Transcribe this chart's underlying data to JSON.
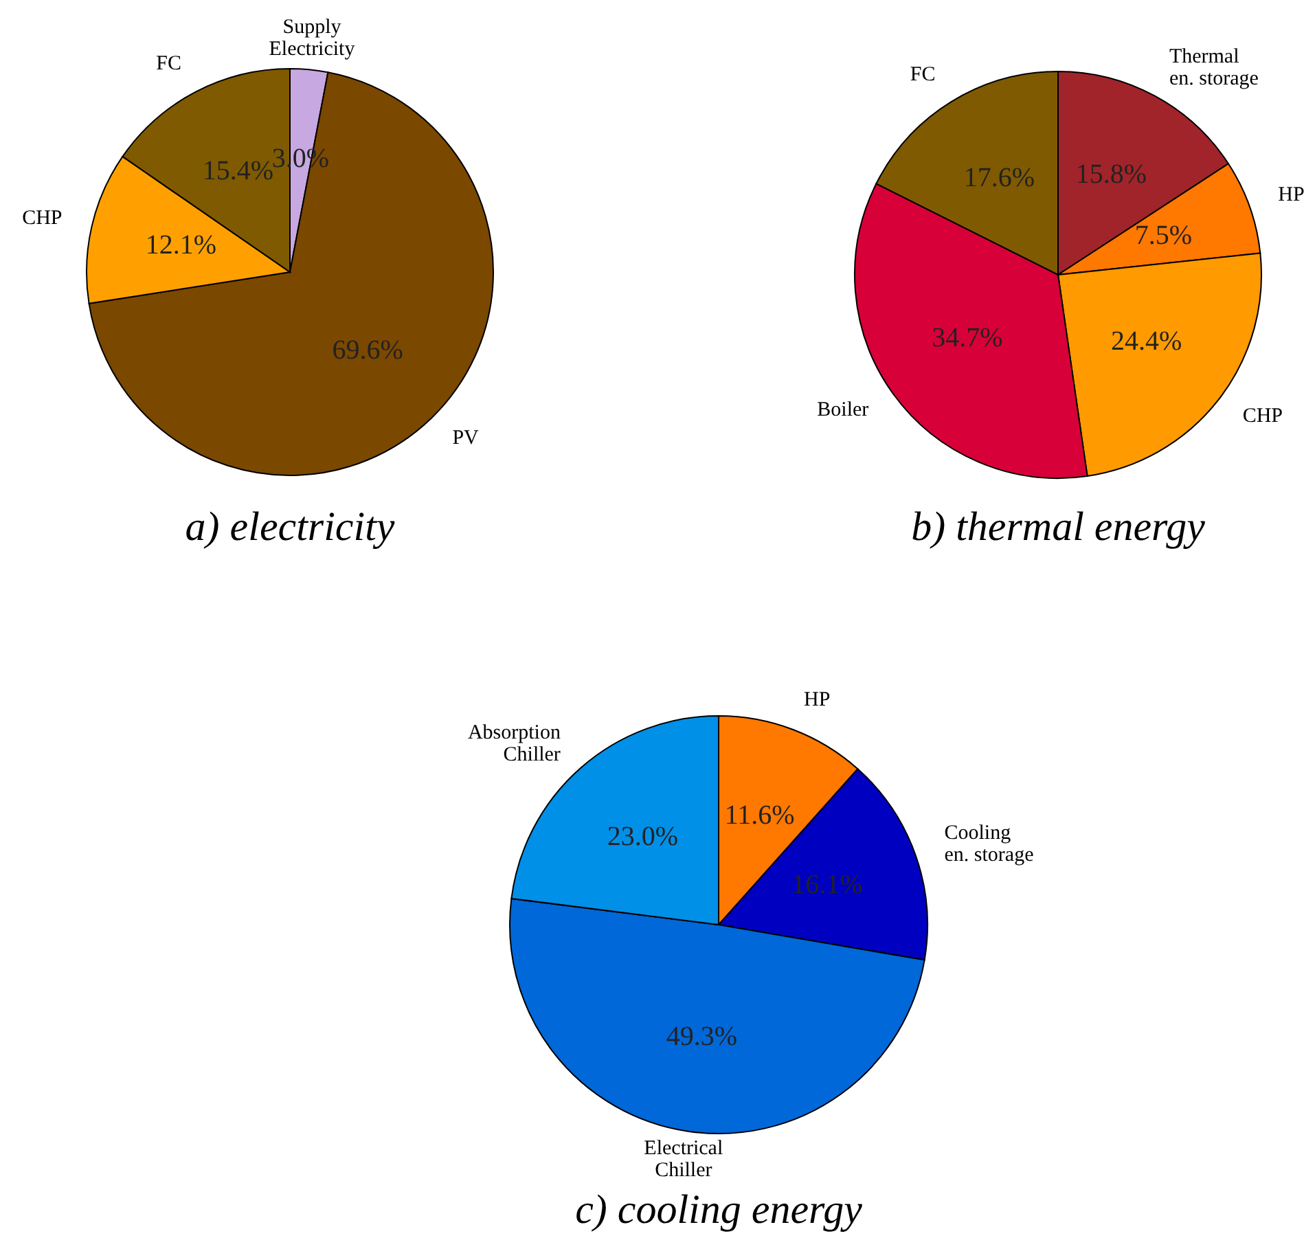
{
  "chart_data": [
    {
      "type": "pie",
      "title": "a)  electricity",
      "categories": [
        "Supply Electricity",
        "PV",
        "CHP",
        "FC"
      ],
      "values": [
        3.0,
        69.6,
        12.1,
        15.4
      ],
      "value_labels": [
        "3.0%",
        "69.6%",
        "12.1%",
        "15.4%"
      ],
      "colors": [
        "#c8a8e0",
        "#7b4800",
        "#ffa000",
        "#7f5a00"
      ]
    },
    {
      "type": "pie",
      "title": "b)  thermal energy",
      "categories": [
        "Thermal en. storage",
        "HP",
        "CHP",
        "Boiler",
        "FC"
      ],
      "values": [
        15.8,
        7.5,
        24.4,
        34.7,
        17.6
      ],
      "value_labels": [
        "15.8%",
        "7.5%",
        "24.4%",
        "34.7%",
        "17.6%"
      ],
      "colors": [
        "#a0242a",
        "#ff7800",
        "#ff9a00",
        "#d80038",
        "#7f5a00"
      ]
    },
    {
      "type": "pie",
      "title": "c)  cooling energy",
      "categories": [
        "HP",
        "Cooling en. storage",
        "Electrical Chiller",
        "Absorption Chiller"
      ],
      "values": [
        11.6,
        16.1,
        49.3,
        23.0
      ],
      "value_labels": [
        "11.6%",
        "16.1%",
        "49.3%",
        "23.0%"
      ],
      "colors": [
        "#ff7800",
        "#0000c0",
        "#0068d8",
        "#0090e8"
      ]
    }
  ]
}
